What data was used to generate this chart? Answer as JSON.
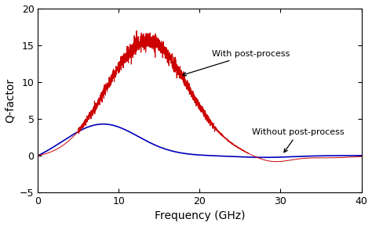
{
  "title": "",
  "xlabel": "Frequency (GHz)",
  "ylabel": "Q-factor",
  "xlim": [
    0,
    40
  ],
  "ylim": [
    -5,
    20
  ],
  "yticks": [
    -5,
    0,
    5,
    10,
    15,
    20
  ],
  "xticks": [
    0,
    10,
    20,
    30,
    40
  ],
  "red_color": "#cc0000",
  "blue_color": "#0000bb",
  "annotation_with": "With post-process",
  "annotation_without": "Without post-process",
  "figsize": [
    4.74,
    2.89
  ],
  "dpi": 100
}
